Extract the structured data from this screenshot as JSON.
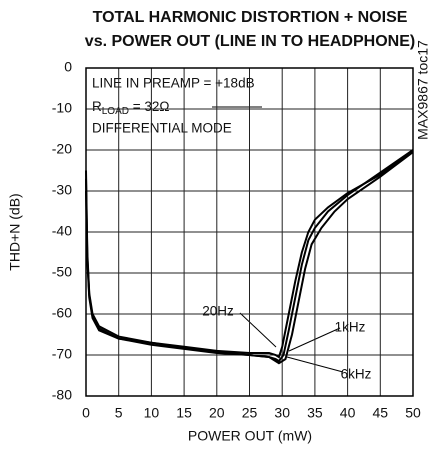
{
  "chart_data": {
    "type": "line",
    "title": [
      "TOTAL HARMONIC DISTORTION + NOISE",
      "vs. POWER OUT (LINE IN TO HEADPHONE)"
    ],
    "xlabel": "POWER OUT (mW)",
    "ylabel": "THD+N (dB)",
    "annotations": [
      "LINE IN PREAMP = +18dB",
      {
        "text": "R",
        "sub": "LOAD",
        "rest": " = 32Ω"
      },
      "DIFFERENTIAL MODE"
    ],
    "side_label": "MAX9867 toc17",
    "xlim": [
      0,
      50
    ],
    "xticks": [
      0,
      5,
      10,
      15,
      20,
      25,
      30,
      35,
      40,
      45,
      50
    ],
    "ylim": [
      -80,
      0
    ],
    "yticks": [
      0,
      -10,
      -20,
      -30,
      -40,
      -50,
      -60,
      -70,
      -80
    ],
    "grid": true,
    "series": [
      {
        "name": "20Hz",
        "color": "#000000",
        "x": [
          0,
          0.2,
          0.5,
          1,
          2,
          5,
          10,
          15,
          20,
          25,
          28,
          29,
          29.5,
          30,
          31,
          32,
          33,
          34,
          35,
          37,
          40,
          45,
          50
        ],
        "values": [
          -25,
          -45,
          -55,
          -60,
          -63,
          -65.5,
          -67,
          -68,
          -69,
          -69.5,
          -69.5,
          -70,
          -70.5,
          -68,
          -60,
          -52,
          -45,
          -40,
          -37,
          -34,
          -30.5,
          -26,
          -20
        ]
      },
      {
        "name": "1kHz",
        "color": "#000000",
        "x": [
          0,
          0.2,
          0.5,
          1,
          2,
          5,
          10,
          15,
          20,
          25,
          28,
          29,
          29.5,
          30.2,
          31,
          32,
          33,
          34,
          35,
          37,
          40,
          45,
          50
        ],
        "values": [
          -27,
          -46,
          -55.5,
          -60.5,
          -63.5,
          -66,
          -67.5,
          -68.5,
          -69.5,
          -70,
          -70.5,
          -71,
          -71.5,
          -70,
          -64,
          -56,
          -48,
          -42,
          -39,
          -35,
          -31,
          -25.5,
          -20
        ]
      },
      {
        "name": "6kHz",
        "color": "#000000",
        "x": [
          0,
          0.2,
          0.5,
          1,
          2,
          5,
          10,
          15,
          20,
          25,
          28,
          29,
          29.5,
          30.5,
          31.5,
          32.5,
          33.5,
          34.5,
          36,
          38,
          40,
          45,
          50
        ],
        "values": [
          -30,
          -47,
          -56,
          -61,
          -64,
          -66,
          -67,
          -68.3,
          -69.3,
          -70,
          -70.5,
          -71.5,
          -72,
          -71,
          -65,
          -57,
          -49,
          -43,
          -39,
          -35,
          -32,
          -26.5,
          -20.5
        ]
      }
    ]
  }
}
